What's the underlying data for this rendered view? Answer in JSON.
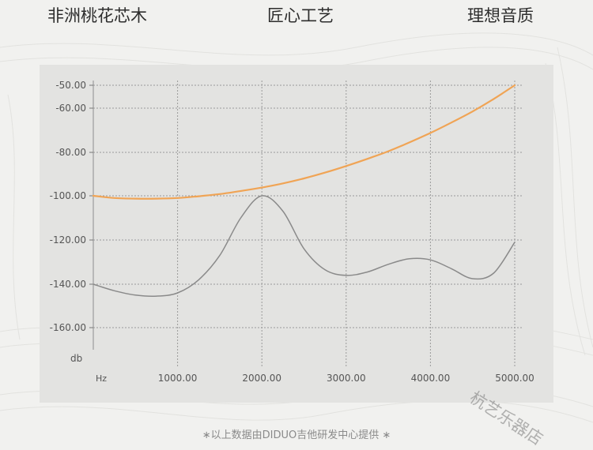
{
  "header": {
    "left": "非洲桃花芯木",
    "center": "匠心工艺",
    "right": "理想音质"
  },
  "chart_data": {
    "type": "line",
    "title": "",
    "xlabel": "Hz",
    "ylabel": "db",
    "xlim": [
      0,
      5000
    ],
    "ylim": [
      -170,
      -50
    ],
    "x_ticks": [
      1000,
      2000,
      3000,
      4000,
      5000
    ],
    "x_tick_labels": [
      "1000.00",
      "2000.00",
      "3000.00",
      "4000.00",
      "5000.00"
    ],
    "y_ticks": [
      -50,
      -60,
      -80,
      -100,
      -120,
      -140,
      -160
    ],
    "y_tick_labels": [
      "-50.00",
      "-60.00",
      "-80.00",
      "-100.00",
      "-120.00",
      "-140.00",
      "-160.00"
    ],
    "grid": true,
    "series": [
      {
        "color": "#f0a455",
        "x": [
          0,
          250,
          500,
          750,
          1000,
          1250,
          1500,
          1750,
          2000,
          2250,
          2500,
          2750,
          3000,
          3250,
          3500,
          3750,
          4000,
          4250,
          4500,
          4750,
          5000
        ],
        "y": [
          -100,
          -101,
          -101.3,
          -101.3,
          -101,
          -100.2,
          -99.2,
          -97.8,
          -96.2,
          -94.3,
          -92,
          -89.3,
          -86.3,
          -83,
          -79.5,
          -75.5,
          -71.2,
          -66.5,
          -61.5,
          -56,
          -50
        ]
      },
      {
        "color": "#8a8a8a",
        "x": [
          0,
          250,
          500,
          750,
          1000,
          1250,
          1500,
          1750,
          2000,
          2250,
          2500,
          2750,
          3000,
          3250,
          3500,
          3750,
          4000,
          4250,
          4500,
          4750,
          5000
        ],
        "y": [
          -140,
          -143,
          -145,
          -145.5,
          -144,
          -138,
          -127,
          -110,
          -100,
          -107,
          -124,
          -133.5,
          -136,
          -134.5,
          -131,
          -128.5,
          -129,
          -133,
          -137.5,
          -135,
          -121
        ]
      }
    ]
  },
  "footer": "∗以上数据由DIDUO吉他研发中心提供 ∗",
  "watermark": "杭艺乐器店",
  "colors": {
    "background": "#f1f1ef",
    "plot_area": "#e3e3e1",
    "grid": "#9a9a9a"
  }
}
